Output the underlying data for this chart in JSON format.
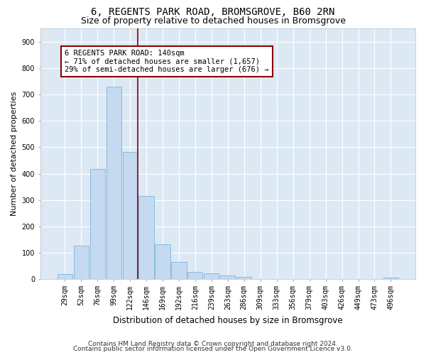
{
  "title1": "6, REGENTS PARK ROAD, BROMSGROVE, B60 2RN",
  "title2": "Size of property relative to detached houses in Bromsgrove",
  "xlabel": "Distribution of detached houses by size in Bromsgrove",
  "ylabel": "Number of detached properties",
  "categories": [
    "29sqm",
    "52sqm",
    "76sqm",
    "99sqm",
    "122sqm",
    "146sqm",
    "169sqm",
    "192sqm",
    "216sqm",
    "239sqm",
    "263sqm",
    "286sqm",
    "309sqm",
    "333sqm",
    "356sqm",
    "379sqm",
    "403sqm",
    "426sqm",
    "449sqm",
    "473sqm",
    "496sqm"
  ],
  "values": [
    20,
    127,
    417,
    730,
    483,
    315,
    133,
    65,
    28,
    22,
    14,
    9,
    0,
    0,
    0,
    0,
    0,
    0,
    0,
    0,
    5
  ],
  "bar_color": "#c5d9f0",
  "bar_edge_color": "#6baed6",
  "bar_width": 0.92,
  "vline_x": 4.48,
  "vline_color": "#8b0000",
  "annotation_text": "6 REGENTS PARK ROAD: 140sqm\n← 71% of detached houses are smaller (1,657)\n29% of semi-detached houses are larger (676) →",
  "annotation_box_color": "#ffffff",
  "annotation_box_edge_color": "#8b0000",
  "ylim": [
    0,
    950
  ],
  "yticks": [
    0,
    100,
    200,
    300,
    400,
    500,
    600,
    700,
    800,
    900
  ],
  "footer1": "Contains HM Land Registry data © Crown copyright and database right 2024.",
  "footer2": "Contains public sector information licensed under the Open Government Licence v3.0.",
  "plot_bg_color": "#dce9f5",
  "fig_bg_color": "#ffffff",
  "grid_color": "#ffffff",
  "title1_fontsize": 10,
  "title2_fontsize": 9,
  "xlabel_fontsize": 8.5,
  "ylabel_fontsize": 8,
  "tick_fontsize": 7,
  "footer_fontsize": 6.5,
  "ann_fontsize": 7.5
}
